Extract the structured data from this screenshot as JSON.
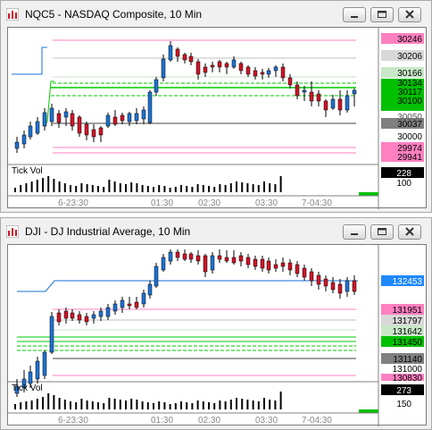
{
  "colors": {
    "up": "#1e73d2",
    "down": "#d11428",
    "pink": "#ff80c0",
    "green": "#00c800",
    "blue_line": "#1a6fd6",
    "gray": "#a0a0a0",
    "grid_dark": "#404040"
  },
  "time_labels": [
    "6-23:30",
    "01:30",
    "02:30",
    "03:30",
    "7-04:30"
  ],
  "windows": [
    {
      "title": "NQC5 - NASDAQ Composite, 10 Min",
      "icon": "chart-app-icon",
      "controls": {
        "minimize": "minimize-icon",
        "maximize": "maximize-icon",
        "close": "close-icon"
      },
      "price_labels": [
        {
          "text": "30246",
          "bg": "#ff80c0"
        },
        {
          "text": "30206",
          "bg": "#d8d8d8"
        },
        {
          "text": "30166",
          "bg": "#c8e8c8"
        },
        {
          "text": "30134",
          "bg": "#00c000"
        },
        {
          "text": "30117",
          "bg": "#00c000"
        },
        {
          "text": "30100",
          "bg": "#00c000"
        },
        {
          "text": "30037",
          "bg": "#808080"
        },
        {
          "text": "30050",
          "bg": ""
        },
        {
          "text": "30000",
          "bg": ""
        },
        {
          "text": "29974",
          "bg": "#ff80c0"
        },
        {
          "text": "29941",
          "bg": "#ff80c0"
        }
      ],
      "tick_title": "Tick Vol",
      "tick_values": [
        "228",
        "100"
      ]
    },
    {
      "title": "DJI - DJ Industrial Average, 10 Min",
      "icon": "chart-app-icon",
      "controls": {
        "minimize": "minimize-icon",
        "maximize": "maximize-icon",
        "close": "close-icon"
      },
      "price_labels": [
        {
          "text": "132453",
          "bg": "#1e88ff"
        },
        {
          "text": "131951",
          "bg": "#ff80c0"
        },
        {
          "text": "131797",
          "bg": "#d8d8d8"
        },
        {
          "text": "131642",
          "bg": "#c8e8c8"
        },
        {
          "text": "131450",
          "bg": "#00c000"
        },
        {
          "text": "131140",
          "bg": "#808080"
        },
        {
          "text": "131000",
          "bg": ""
        },
        {
          "text": "130830",
          "bg": "#ff80c0"
        }
      ],
      "tick_title": "Tick Vol",
      "tick_values": [
        "273",
        "150"
      ]
    }
  ]
}
